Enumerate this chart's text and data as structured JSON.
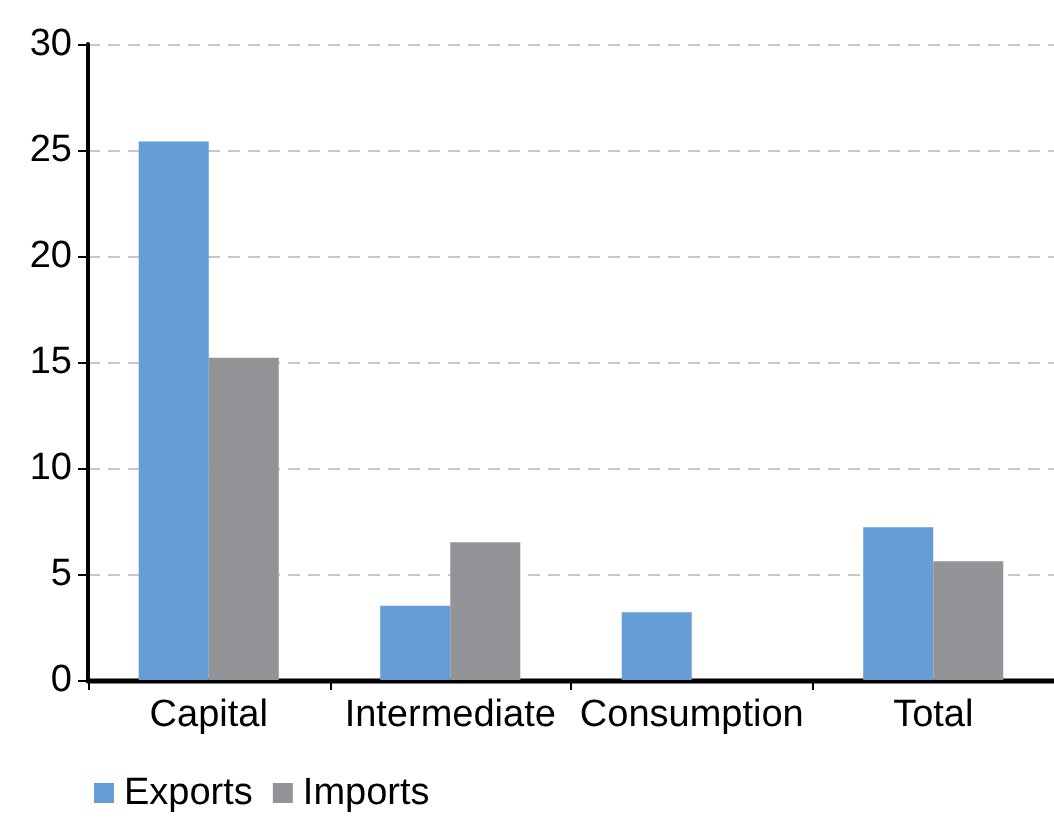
{
  "chart_data": {
    "type": "bar",
    "categories": [
      "Capital",
      "Intermediate",
      "Consumption",
      "Total"
    ],
    "series": [
      {
        "name": "Exports",
        "color": "#659dd4",
        "values": [
          25.4,
          3.5,
          3.2,
          7.2
        ]
      },
      {
        "name": "Imports",
        "color": "#939498",
        "values": [
          15.2,
          6.5,
          0,
          5.6
        ]
      }
    ],
    "ylim": [
      0,
      30
    ],
    "yticks": [
      0,
      5,
      10,
      15,
      20,
      25,
      30
    ],
    "grid": "y",
    "legend": "bottom left"
  }
}
